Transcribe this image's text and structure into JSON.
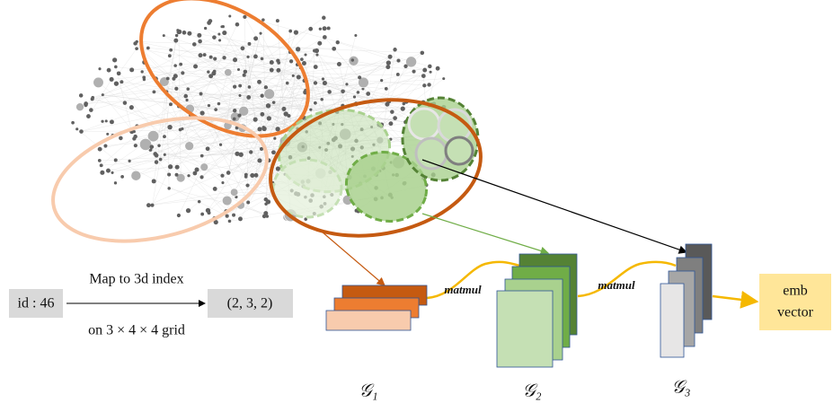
{
  "input": {
    "id": "id : 46"
  },
  "mapping": {
    "label_top": "Map to 3d index",
    "label_bottom": "on 3 × 4 × 4 grid"
  },
  "output_index": "(2, 3, 2)",
  "operators": [
    "matmul",
    "matmul"
  ],
  "tensors": [
    "𝒢₁",
    "𝒢₂",
    "𝒢₃"
  ],
  "embedding": {
    "lines": [
      "emb",
      "vector"
    ]
  }
}
